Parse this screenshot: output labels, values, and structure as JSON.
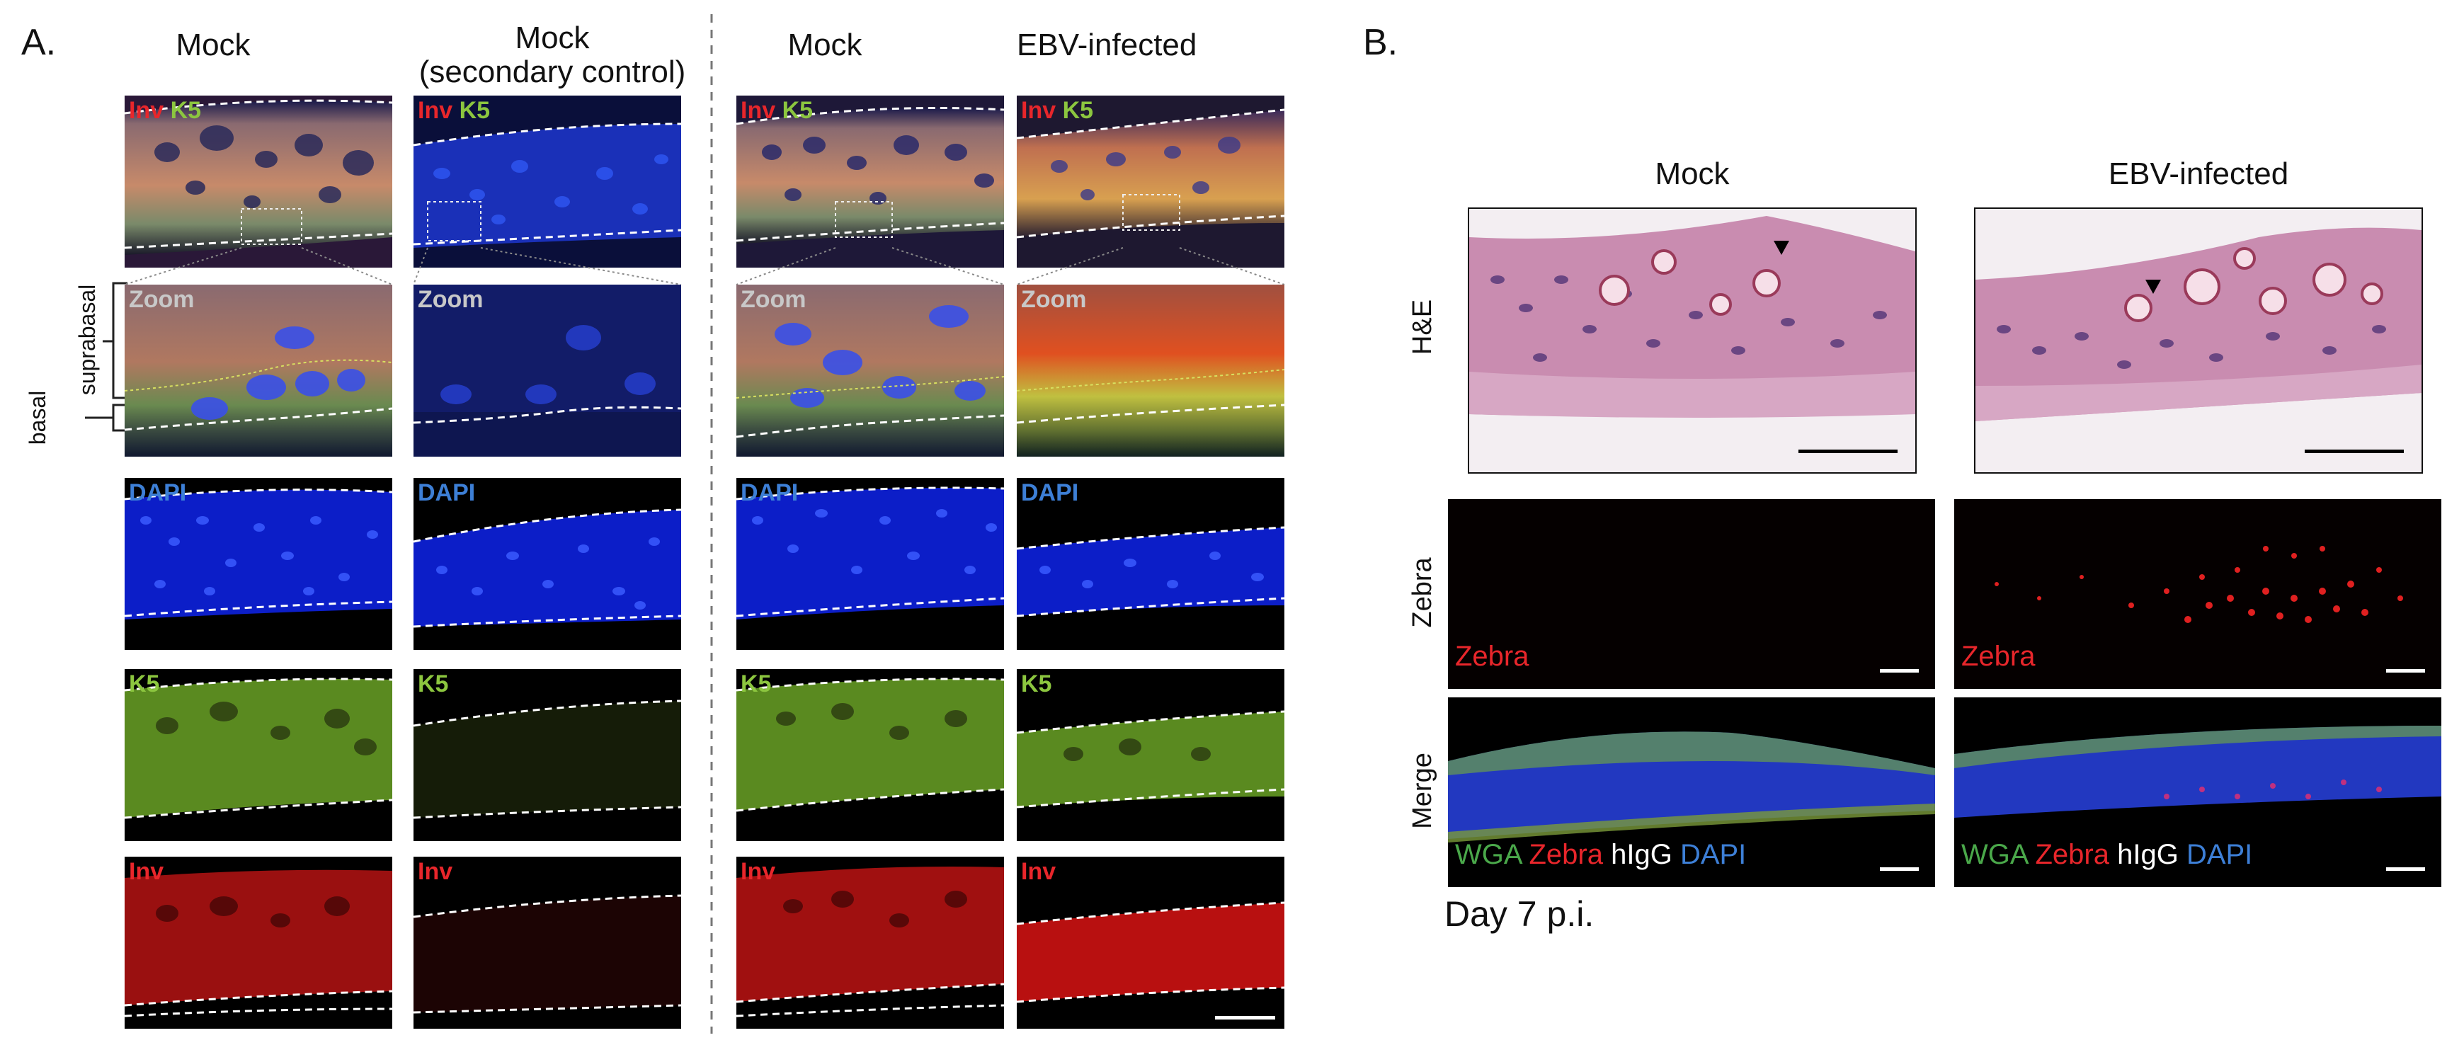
{
  "panel_a": {
    "letter": "A.",
    "columns": [
      "Mock",
      "Mock\n(secondary control)",
      "Mock",
      "EBV-infected"
    ],
    "column_title_line1": [
      "Mock",
      "Mock",
      "Mock",
      "EBV-infected"
    ],
    "column_title_line2": [
      "",
      "(secondary control)",
      "",
      ""
    ],
    "row_labels": {
      "suprabasal": "suprabasal",
      "basal": "basal"
    },
    "channel_labels": {
      "inv": "Inv",
      "k5": "K5",
      "zoom": "Zoom",
      "dapi": "DAPI"
    }
  },
  "panel_b": {
    "letter": "B.",
    "columns": [
      "Mock",
      "EBV-infected"
    ],
    "row_labels": [
      "H&E",
      "Zebra",
      "Merge"
    ],
    "zebra_label": "Zebra",
    "merge_labels": {
      "wga": "WGA",
      "zebra": "Zebra",
      "higg": "hIgG",
      "dapi": "DAPI"
    },
    "footer": "Day 7 p.i."
  },
  "colors": {
    "inv_red": "#e8262b",
    "k5_green": "#8cc63f",
    "dapi_blue": "#3d7fd6",
    "zoom_gray": "#c8c8c8"
  }
}
